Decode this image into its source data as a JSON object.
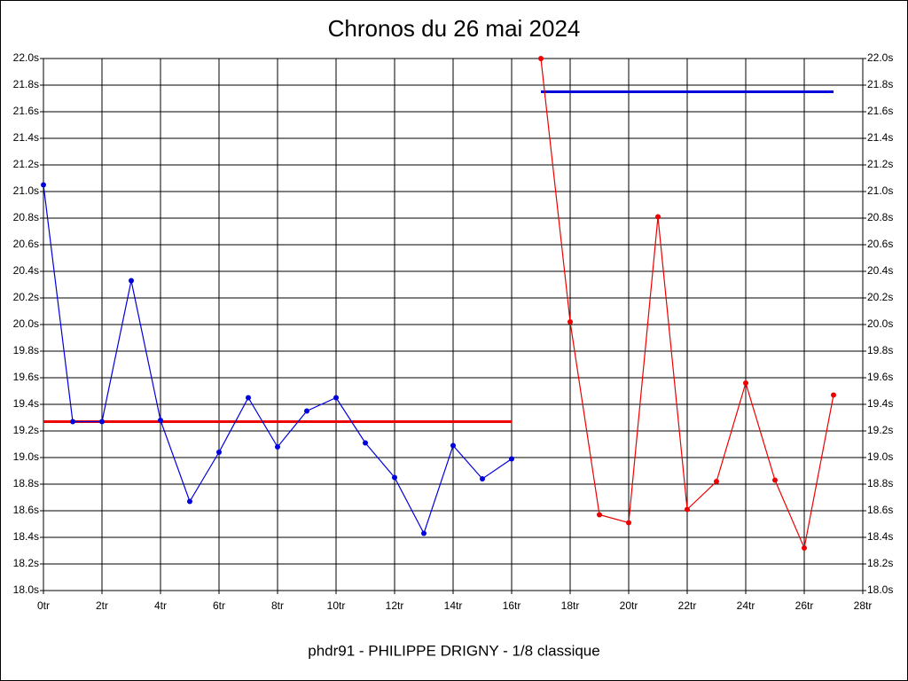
{
  "chart_data": {
    "type": "line",
    "title": "Chronos du 26 mai 2024",
    "x_label": "phdr91 - PHILIPPE DRIGNY - 1/8 classique",
    "xlim": [
      0,
      28
    ],
    "xticks": [
      {
        "value": 0,
        "label": "0tr"
      },
      {
        "value": 2,
        "label": "2tr"
      },
      {
        "value": 4,
        "label": "4tr"
      },
      {
        "value": 6,
        "label": "6tr"
      },
      {
        "value": 8,
        "label": "8tr"
      },
      {
        "value": 10,
        "label": "10tr"
      },
      {
        "value": 12,
        "label": "12tr"
      },
      {
        "value": 14,
        "label": "14tr"
      },
      {
        "value": 16,
        "label": "16tr"
      },
      {
        "value": 18,
        "label": "18tr"
      },
      {
        "value": 20,
        "label": "20tr"
      },
      {
        "value": 22,
        "label": "22tr"
      },
      {
        "value": 24,
        "label": "24tr"
      },
      {
        "value": 26,
        "label": "26tr"
      },
      {
        "value": 28,
        "label": "28tr"
      }
    ],
    "ylim": [
      18.0,
      22.0
    ],
    "yticks": [
      {
        "value": 18.0,
        "label": "18.0s"
      },
      {
        "value": 18.2,
        "label": "18.2s"
      },
      {
        "value": 18.4,
        "label": "18.4s"
      },
      {
        "value": 18.6,
        "label": "18.6s"
      },
      {
        "value": 18.8,
        "label": "18.8s"
      },
      {
        "value": 19.0,
        "label": "19.0s"
      },
      {
        "value": 19.2,
        "label": "19.2s"
      },
      {
        "value": 19.4,
        "label": "19.4s"
      },
      {
        "value": 19.6,
        "label": "19.6s"
      },
      {
        "value": 19.8,
        "label": "19.8s"
      },
      {
        "value": 20.0,
        "label": "20.0s"
      },
      {
        "value": 20.2,
        "label": "20.2s"
      },
      {
        "value": 20.4,
        "label": "20.4s"
      },
      {
        "value": 20.6,
        "label": "20.6s"
      },
      {
        "value": 20.8,
        "label": "20.8s"
      },
      {
        "value": 21.0,
        "label": "21.0s"
      },
      {
        "value": 21.2,
        "label": "21.2s"
      },
      {
        "value": 21.4,
        "label": "21.4s"
      },
      {
        "value": 21.6,
        "label": "21.6s"
      },
      {
        "value": 21.8,
        "label": "21.8s"
      },
      {
        "value": 22.0,
        "label": "22.0s"
      }
    ],
    "grid": true,
    "series": [
      {
        "color": "#0000dd",
        "x": [
          0,
          1,
          2,
          3,
          4,
          5,
          6,
          7,
          8,
          9,
          10,
          11,
          12,
          13,
          14,
          15,
          16
        ],
        "values": [
          21.05,
          19.27,
          19.27,
          20.33,
          19.28,
          18.67,
          19.04,
          19.45,
          19.08,
          19.35,
          19.45,
          19.11,
          18.85,
          18.43,
          19.09,
          18.84,
          18.99
        ]
      },
      {
        "color": "#ee0000",
        "x": [
          17,
          18,
          19,
          20,
          21,
          22,
          23,
          24,
          25,
          26,
          27
        ],
        "values": [
          22.0,
          20.02,
          18.57,
          18.51,
          20.81,
          18.61,
          18.82,
          19.56,
          18.83,
          18.32,
          19.47
        ]
      }
    ],
    "ref_lines": [
      {
        "color": "#ee0000",
        "value": 19.27,
        "x": [
          0,
          16
        ]
      },
      {
        "color": "#0000dd",
        "value": 21.75,
        "x": [
          17,
          27
        ]
      }
    ]
  }
}
